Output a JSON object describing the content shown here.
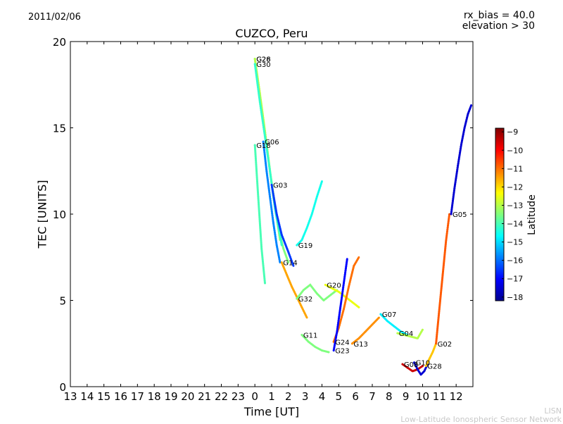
{
  "header": {
    "date": "2011/02/06",
    "rx_bias": "rx_bias = 40.0",
    "elevation": "elevation > 30"
  },
  "footer": {
    "acronym": "LISN",
    "network": "Low-Latitude Ionospheric Sensor Network"
  },
  "colors": {
    "colormap": [
      "#00008f",
      "#0000ff",
      "#007fff",
      "#00ffff",
      "#7fff7f",
      "#ffff00",
      "#ff7f00",
      "#ff0000",
      "#7f0000"
    ]
  },
  "chart_data": {
    "type": "scatter",
    "title": "CUZCO, Peru",
    "xlabel": "Time [UT]",
    "ylabel": "TEC [UNITS]",
    "x_tick_labels": [
      "13",
      "14",
      "15",
      "16",
      "17",
      "18",
      "19",
      "20",
      "21",
      "22",
      "23",
      "0",
      "1",
      "2",
      "3",
      "4",
      "5",
      "6",
      "7",
      "8",
      "9",
      "10",
      "11",
      "12"
    ],
    "xlim": [
      13,
      37
    ],
    "ylim": [
      0,
      20
    ],
    "y_ticks": [
      0,
      5,
      10,
      15,
      20
    ],
    "colorbar": {
      "label": "Latitude",
      "range": [
        -18.2,
        -8.8
      ],
      "ticks": [
        -9,
        -10,
        -11,
        -12,
        -13,
        -14,
        -15,
        -16,
        -17,
        -18
      ]
    },
    "grid": false,
    "series": [
      {
        "name": "G26",
        "lat": -13.5,
        "x": [
          24.0,
          24.2,
          24.5,
          24.8,
          25.1,
          25.4,
          25.7,
          26.0
        ],
        "y": [
          19.0,
          17.5,
          15.5,
          13.3,
          11.0,
          9.2,
          8.0,
          7.2
        ]
      },
      {
        "name": "G28",
        "lat": -13.0,
        "x": [
          24.0,
          24.3,
          24.6,
          24.9,
          25.2,
          25.5
        ],
        "y": [
          19.0,
          17.0,
          14.8,
          12.5,
          10.5,
          8.5
        ]
      },
      {
        "name": "G30",
        "lat": -14.2,
        "x": [
          24.0,
          24.3,
          24.6,
          24.9,
          25.2,
          25.6
        ],
        "y": [
          18.7,
          16.5,
          14.5,
          12.5,
          10.3,
          8.2
        ]
      },
      {
        "name": "G18",
        "lat": -14.0,
        "x": [
          24.0,
          24.2,
          24.4,
          24.6
        ],
        "y": [
          14.0,
          11.0,
          8.0,
          6.0
        ]
      },
      {
        "name": "G06",
        "lat": -15.8,
        "x": [
          24.5,
          24.7,
          24.9,
          25.1,
          25.3,
          25.5
        ],
        "y": [
          14.2,
          12.5,
          11.0,
          9.5,
          8.2,
          7.2
        ]
      },
      {
        "name": "G03",
        "lat": -16.5,
        "x": [
          25.0,
          25.3,
          25.6,
          26.0,
          26.3
        ],
        "y": [
          11.7,
          10.0,
          8.8,
          7.8,
          7.0
        ]
      },
      {
        "name": "G19",
        "lat": -14.5,
        "x": [
          26.5,
          26.8,
          27.1,
          27.4,
          27.7,
          28.0
        ],
        "y": [
          8.2,
          8.5,
          9.2,
          10.0,
          11.0,
          11.9
        ]
      },
      {
        "name": "G14",
        "lat": -11.5,
        "x": [
          25.6,
          25.9,
          26.2,
          26.5,
          26.8,
          27.1
        ],
        "y": [
          7.2,
          6.5,
          5.8,
          5.2,
          4.6,
          4.0
        ]
      },
      {
        "name": "G32",
        "lat": -13.5,
        "x": [
          26.5,
          26.9,
          27.3,
          27.7,
          28.1,
          28.5,
          28.9
        ],
        "y": [
          5.1,
          5.6,
          5.9,
          5.4,
          5.0,
          5.3,
          5.6
        ]
      },
      {
        "name": "G20",
        "lat": -12.5,
        "x": [
          28.2,
          28.6,
          29.0,
          29.4,
          29.8,
          30.2
        ],
        "y": [
          5.9,
          5.7,
          5.5,
          5.2,
          4.9,
          4.6
        ]
      },
      {
        "name": "G24",
        "lat": -11.0,
        "x": [
          28.7,
          29.0,
          29.3,
          29.6,
          29.9,
          30.2
        ],
        "y": [
          2.6,
          3.4,
          4.5,
          5.8,
          7.0,
          7.5
        ]
      },
      {
        "name": "G23",
        "lat": -17.0,
        "x": [
          28.7,
          28.9,
          29.1,
          29.3,
          29.5
        ],
        "y": [
          2.1,
          3.2,
          4.6,
          6.0,
          7.4
        ]
      },
      {
        "name": "G11",
        "lat": -13.5,
        "x": [
          26.8,
          27.2,
          27.6,
          28.0,
          28.4
        ],
        "y": [
          3.0,
          2.6,
          2.3,
          2.1,
          2.0
        ]
      },
      {
        "name": "G13",
        "lat": -11.3,
        "x": [
          29.8,
          30.2,
          30.6,
          31.0,
          31.4
        ],
        "y": [
          2.5,
          2.8,
          3.2,
          3.6,
          4.0
        ]
      },
      {
        "name": "G07",
        "lat": -14.8,
        "x": [
          31.5,
          31.9,
          32.3,
          32.7,
          33.1
        ],
        "y": [
          4.2,
          3.8,
          3.5,
          3.2,
          3.0
        ]
      },
      {
        "name": "G04",
        "lat": -13.0,
        "x": [
          32.5,
          32.9,
          33.3,
          33.7,
          34.0
        ],
        "y": [
          3.1,
          3.0,
          2.9,
          2.8,
          3.3
        ]
      },
      {
        "name": "G08",
        "lat": -9.5,
        "x": [
          32.8,
          33.1,
          33.4,
          33.7,
          34.0
        ],
        "y": [
          1.3,
          1.1,
          0.9,
          1.0,
          1.2
        ]
      },
      {
        "name": "G10",
        "lat": -17.5,
        "x": [
          33.5,
          33.7,
          33.9,
          34.1,
          34.3
        ],
        "y": [
          1.4,
          1.0,
          0.7,
          0.9,
          1.3
        ]
      },
      {
        "name": "G28",
        "lat": -11.8,
        "x": [
          34.2,
          34.4,
          34.6,
          34.8
        ],
        "y": [
          1.2,
          1.6,
          2.0,
          2.5
        ]
      },
      {
        "name": "G02",
        "lat": -10.8,
        "x": [
          34.8,
          35.0,
          35.2,
          35.4,
          35.6
        ],
        "y": [
          2.5,
          4.5,
          6.5,
          8.5,
          10.0
        ]
      },
      {
        "name": "G05",
        "lat": -17.5,
        "x": [
          35.7,
          35.9,
          36.1,
          36.3,
          36.5,
          36.7,
          36.9
        ],
        "y": [
          10.0,
          11.5,
          12.8,
          14.0,
          15.0,
          15.8,
          16.3
        ]
      }
    ]
  }
}
